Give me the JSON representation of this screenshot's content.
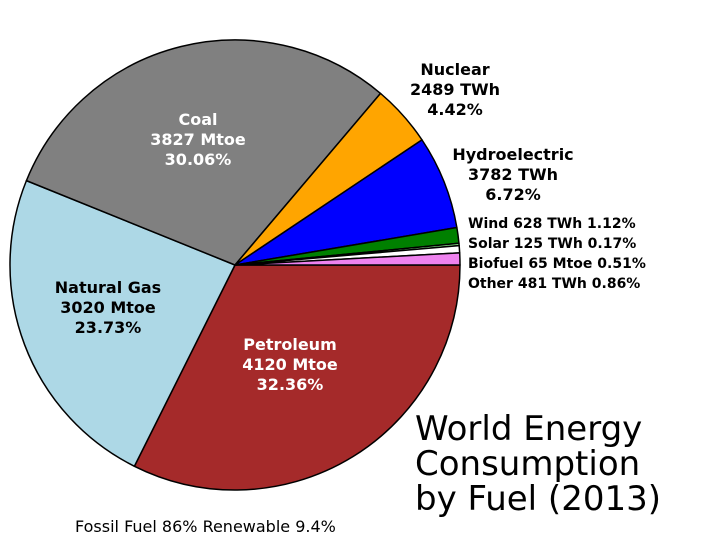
{
  "chart_data": {
    "type": "pie",
    "title_lines": [
      "World Energy",
      "Consumption",
      "by Fuel (2013)"
    ],
    "footer": "Fossil Fuel 86% Renewable 9.4%",
    "slices": [
      {
        "key": "petroleum",
        "lines": [
          "Petroleum",
          "4120 Mtoe",
          "32.36%"
        ],
        "amount": 4120,
        "unit": "Mtoe",
        "percent": 32.36,
        "color": "#a52a2a",
        "label_color": "#ffffff"
      },
      {
        "key": "natural-gas",
        "lines": [
          "Natural Gas",
          "3020 Mtoe",
          "23.73%"
        ],
        "amount": 3020,
        "unit": "Mtoe",
        "percent": 23.73,
        "color": "#add8e6",
        "label_color": "#000000"
      },
      {
        "key": "coal",
        "lines": [
          "Coal",
          "3827 Mtoe",
          "30.06%"
        ],
        "amount": 3827,
        "unit": "Mtoe",
        "percent": 30.06,
        "color": "#808080",
        "label_color": "#ffffff"
      },
      {
        "key": "nuclear",
        "lines": [
          "Nuclear",
          "2489 TWh",
          "4.42%"
        ],
        "amount": 2489,
        "unit": "TWh",
        "percent": 4.42,
        "color": "#ffa500",
        "label_color": "#000000"
      },
      {
        "key": "hydroelectric",
        "lines": [
          "Hydroelectric",
          "3782 TWh",
          "6.72%"
        ],
        "amount": 3782,
        "unit": "TWh",
        "percent": 6.72,
        "color": "#0000ff",
        "label_color": "#000000"
      },
      {
        "key": "wind",
        "lines": [
          "Wind 628 TWh 1.12%"
        ],
        "amount": 628,
        "unit": "TWh",
        "percent": 1.12,
        "color": "#008000",
        "label_color": "#000000"
      },
      {
        "key": "solar",
        "lines": [
          "Solar 125 TWh 0.17%"
        ],
        "amount": 125,
        "unit": "TWh",
        "percent": 0.17,
        "color": "#90ee90",
        "label_color": "#000000"
      },
      {
        "key": "biofuel",
        "lines": [
          "Biofuel 65 Mtoe 0.51%"
        ],
        "amount": 65,
        "unit": "Mtoe",
        "percent": 0.51,
        "color": "#ffffff",
        "label_color": "#000000"
      },
      {
        "key": "other",
        "lines": [
          "Other 481 TWh 0.86%"
        ],
        "amount": 481,
        "unit": "TWh",
        "percent": 0.86,
        "color": "#ee82ee",
        "label_color": "#000000"
      }
    ]
  }
}
